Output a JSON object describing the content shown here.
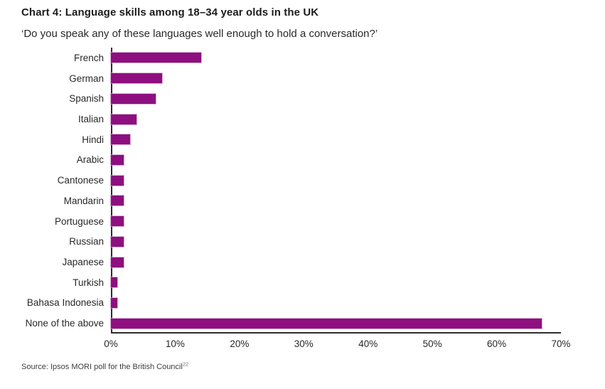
{
  "title": "Chart 4: Language skills among 18–34 year olds in the UK",
  "subtitle": "‘Do you speak any of these languages well enough to hold a conversation?’",
  "source": {
    "text": "Source: Ipsos MORI poll for the British Council",
    "superscript": "22"
  },
  "colors": {
    "bar": "#8e0f7f",
    "axis": "#2e2c2d",
    "text": "#2a2829"
  },
  "chart_data": {
    "type": "bar",
    "orientation": "horizontal",
    "title": "Chart 4: Language skills among 18–34 year olds in the UK",
    "subtitle": "‘Do you speak any of these languages well enough to hold a conversation?’",
    "categories": [
      "French",
      "German",
      "Spanish",
      "Italian",
      "Hindi",
      "Arabic",
      "Cantonese",
      "Mandarin",
      "Portuguese",
      "Russian",
      "Japanese",
      "Turkish",
      "Bahasa Indonesia",
      "None of the above"
    ],
    "values": [
      14,
      8,
      7,
      4,
      3,
      2,
      2,
      2,
      2,
      2,
      2,
      1,
      1,
      67
    ],
    "unit": "%",
    "xlim": [
      0,
      70
    ],
    "x_ticks": [
      "0%",
      "10%",
      "20%",
      "30%",
      "40%",
      "50%",
      "60%",
      "70%"
    ],
    "xlabel": "",
    "ylabel": "",
    "grid": false,
    "legend": false
  }
}
